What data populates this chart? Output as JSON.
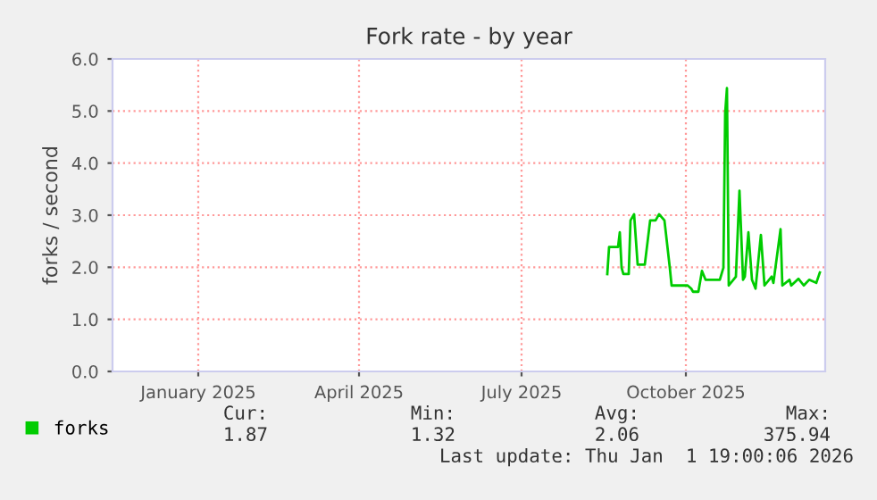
{
  "chart_data": {
    "type": "line",
    "title": "Fork rate - by year",
    "ylabel": "forks / second",
    "xlim": [
      "2024-11-28",
      "2026-01-01"
    ],
    "xticks": [
      {
        "value": "2025-01-15",
        "label": "January 2025"
      },
      {
        "value": "2025-04-15",
        "label": "April 2025"
      },
      {
        "value": "2025-07-15",
        "label": "July 2025"
      },
      {
        "value": "2025-10-15",
        "label": "October 2025"
      }
    ],
    "ylim": [
      0,
      6
    ],
    "yticks": [
      {
        "value": 0,
        "label": "0.0"
      },
      {
        "value": 1,
        "label": "1.0"
      },
      {
        "value": 2,
        "label": "2.0"
      },
      {
        "value": 3,
        "label": "3.0"
      },
      {
        "value": 4,
        "label": "4.0"
      },
      {
        "value": 5,
        "label": "5.0"
      },
      {
        "value": 6,
        "label": "6.0"
      }
    ],
    "grid": true,
    "legend": "bottom left",
    "series": [
      {
        "name": "forks",
        "color": "#00cc00",
        "x": [
          "2025-09-01",
          "2025-09-02",
          "2025-09-07",
          "2025-09-08",
          "2025-09-09",
          "2025-09-10",
          "2025-09-13",
          "2025-09-14",
          "2025-09-16",
          "2025-09-18",
          "2025-09-22",
          "2025-09-25",
          "2025-09-28",
          "2025-09-30",
          "2025-10-03",
          "2025-10-06",
          "2025-10-07",
          "2025-10-16",
          "2025-10-18",
          "2025-10-19",
          "2025-10-22",
          "2025-10-24",
          "2025-10-26",
          "2025-10-29",
          "2025-11-03",
          "2025-11-05",
          "2025-11-06",
          "2025-11-07",
          "2025-11-08",
          "2025-11-12",
          "2025-11-14",
          "2025-11-16",
          "2025-11-17",
          "2025-11-19",
          "2025-11-21",
          "2025-11-23",
          "2025-11-26",
          "2025-11-28",
          "2025-12-02",
          "2025-12-03",
          "2025-12-07",
          "2025-12-08",
          "2025-12-12",
          "2025-12-13",
          "2025-12-17",
          "2025-12-20",
          "2025-12-23",
          "2025-12-27",
          "2025-12-29"
        ],
        "values": [
          1.87,
          2.39,
          2.39,
          2.67,
          1.99,
          1.87,
          1.87,
          2.9,
          3.02,
          2.05,
          2.05,
          2.9,
          2.9,
          3.02,
          2.9,
          1.99,
          1.65,
          1.65,
          1.59,
          1.53,
          1.53,
          1.93,
          1.76,
          1.76,
          1.76,
          1.99,
          4.96,
          5.44,
          1.65,
          1.82,
          3.47,
          1.76,
          1.82,
          2.67,
          1.76,
          1.59,
          2.62,
          1.65,
          1.82,
          1.7,
          2.73,
          1.65,
          1.76,
          1.65,
          1.78,
          1.65,
          1.76,
          1.7,
          1.9
        ]
      }
    ],
    "annotations": [
      "Cur:",
      "Min:",
      "Avg:",
      "Max:",
      "1.87",
      "1.32",
      "2.06",
      "375.94",
      "Last update: Thu Jan  1 19:00:06 2026"
    ]
  }
}
